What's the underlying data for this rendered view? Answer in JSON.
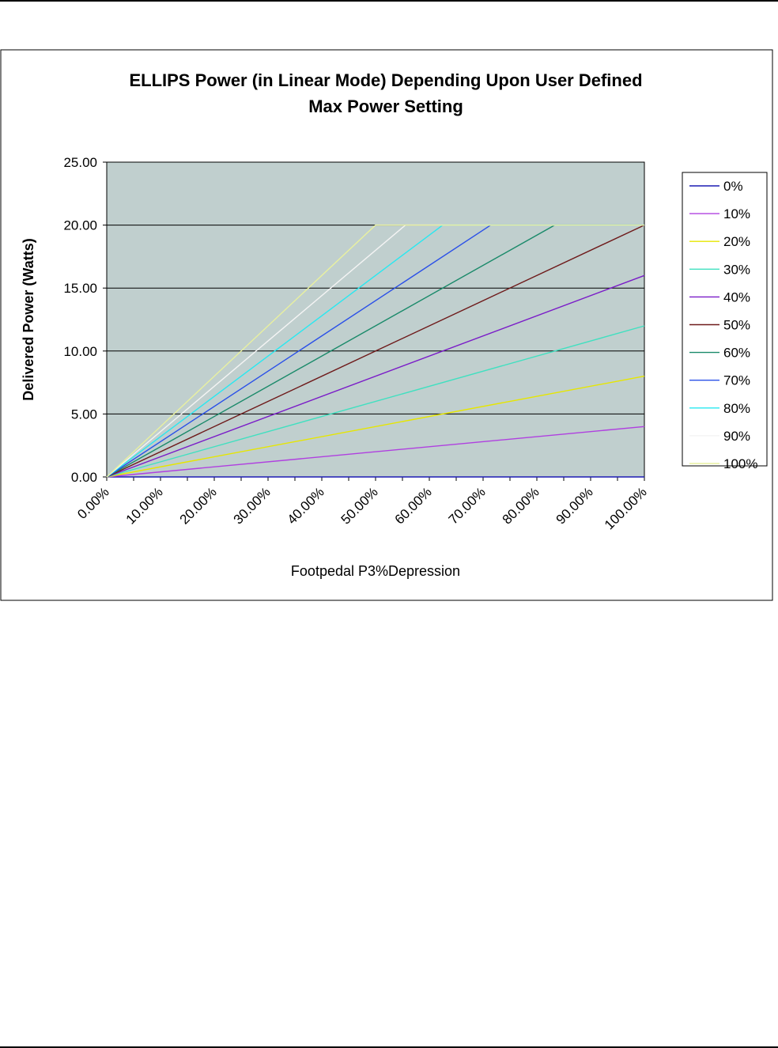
{
  "chart_data": {
    "type": "line",
    "title_lines": [
      "ELLIPS Power (in Linear Mode) Depending Upon User Defined",
      "Max Power Setting"
    ],
    "xlabel": "Footpedal P3%Depression",
    "ylabel": "Delivered Power (Watts)",
    "ylim": [
      0,
      25
    ],
    "xlim": [
      0,
      100
    ],
    "y_ticks": [
      "0.00",
      "5.00",
      "10.00",
      "15.00",
      "20.00",
      "25.00"
    ],
    "x_ticks": [
      "0.00%",
      "10.00%",
      "20.00%",
      "30.00%",
      "40.00%",
      "50.00%",
      "60.00%",
      "70.00%",
      "80.00%",
      "90.00%",
      "100.00%"
    ],
    "grid": "horizontal",
    "legend_position": "right",
    "plot_background": "#c0cfce",
    "series": [
      {
        "name": "0%",
        "color": "#1c1cb4",
        "x": [
          0,
          100
        ],
        "y": [
          0,
          0
        ]
      },
      {
        "name": "10%",
        "color": "#b040e0",
        "x": [
          0,
          100
        ],
        "y": [
          0,
          4
        ]
      },
      {
        "name": "20%",
        "color": "#e6e600",
        "x": [
          0,
          100
        ],
        "y": [
          0,
          8
        ]
      },
      {
        "name": "30%",
        "color": "#40e0c0",
        "x": [
          0,
          100
        ],
        "y": [
          0,
          12
        ]
      },
      {
        "name": "40%",
        "color": "#7a1cc8",
        "x": [
          0,
          100
        ],
        "y": [
          0,
          16
        ]
      },
      {
        "name": "50%",
        "color": "#6e1a1a",
        "x": [
          0,
          100
        ],
        "y": [
          0,
          20
        ]
      },
      {
        "name": "60%",
        "color": "#1a8a6a",
        "x": [
          0,
          83.33,
          100
        ],
        "y": [
          0,
          20,
          20
        ]
      },
      {
        "name": "70%",
        "color": "#2a50e8",
        "x": [
          0,
          71.43,
          100
        ],
        "y": [
          0,
          20,
          20
        ]
      },
      {
        "name": "80%",
        "color": "#28e8f0",
        "x": [
          0,
          62.5,
          100
        ],
        "y": [
          0,
          20,
          20
        ]
      },
      {
        "name": "90%",
        "color": "#f4f4f4",
        "x": [
          0,
          55.56,
          100
        ],
        "y": [
          0,
          20,
          20
        ]
      },
      {
        "name": "100%",
        "color": "#e8f0a0",
        "x": [
          0,
          50,
          100
        ],
        "y": [
          0,
          20,
          20
        ]
      }
    ]
  }
}
